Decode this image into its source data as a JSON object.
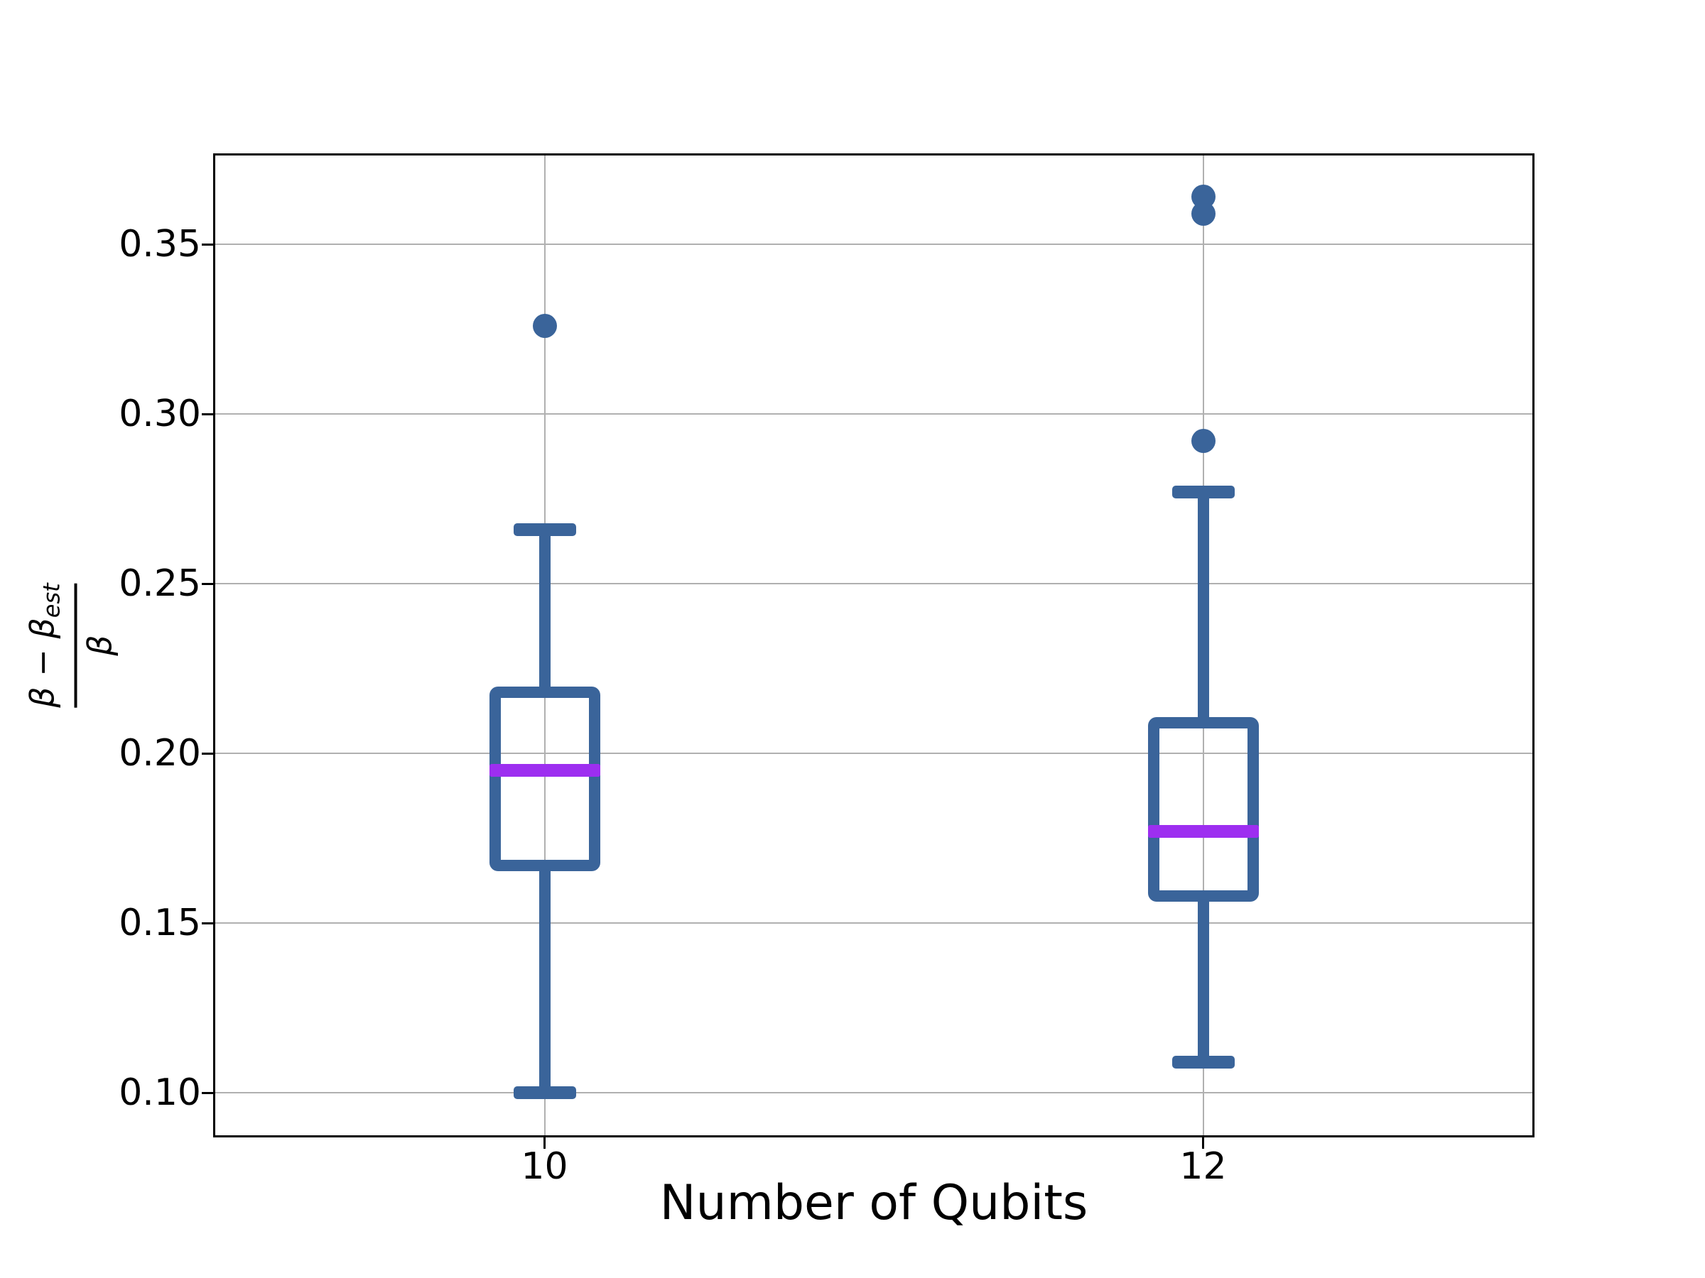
{
  "figure": {
    "ylabel": {
      "numerator": "β − β",
      "numerator_sub": "est",
      "denominator": "β"
    }
  },
  "chart_data": {
    "type": "box",
    "title": "",
    "xlabel": "Number of Qubits",
    "ylabel": "(β − β_est) / β",
    "categories": [
      "10",
      "12"
    ],
    "yticks": [
      0.35,
      0.3,
      0.25,
      0.2,
      0.15,
      0.1
    ],
    "ylim": [
      0.0875,
      0.3762
    ],
    "grid": true,
    "legend": "none",
    "boxes": [
      {
        "category": "10",
        "whisker_low": 0.1,
        "q1": 0.167,
        "median": 0.195,
        "q3": 0.218,
        "whisker_high": 0.266,
        "outliers": [
          0.326
        ]
      },
      {
        "category": "12",
        "whisker_low": 0.109,
        "q1": 0.158,
        "median": 0.177,
        "q3": 0.209,
        "whisker_high": 0.277,
        "outliers": [
          0.292,
          0.359,
          0.364
        ]
      }
    ],
    "colors": {
      "box": "#3A649A",
      "median": "#9D2EF0",
      "grid": "#B0B0B0",
      "spine": "#000000",
      "text": "#000000"
    }
  }
}
